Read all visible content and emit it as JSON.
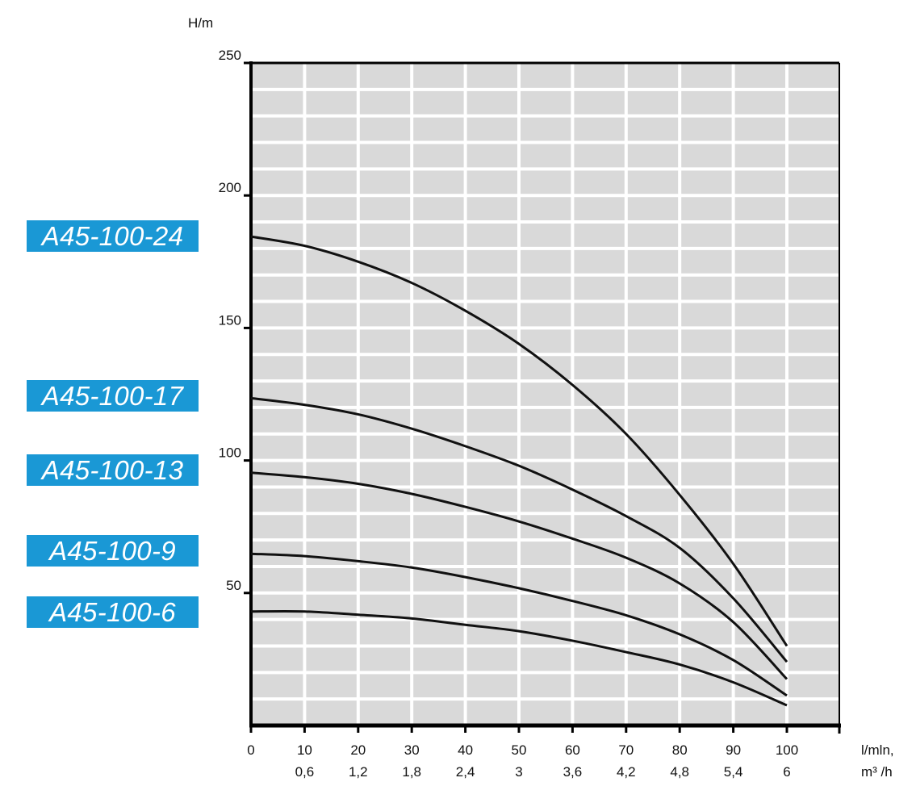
{
  "chart_data": {
    "type": "line",
    "ylabel": "H/m",
    "xlabel": "l/mln,",
    "xlabel2": "m³ /h",
    "xlim": [
      0,
      110
    ],
    "ylim": [
      0,
      250
    ],
    "grid": true,
    "x_ticks": [
      "0",
      "10",
      "20",
      "30",
      "40",
      "50",
      "60",
      "70",
      "80",
      "90",
      "100"
    ],
    "x_ticks_secondary": [
      "",
      "0,6",
      "1,2",
      "1,8",
      "2,4",
      "3",
      "3,6",
      "4,2",
      "4,8",
      "5,4",
      "6"
    ],
    "y_ticks": [
      "50",
      "100",
      "150",
      "200",
      "250"
    ],
    "x": [
      0,
      10,
      20,
      30,
      40,
      50,
      60,
      70,
      80,
      90,
      100
    ],
    "series": [
      {
        "name": "A45-100-24",
        "values": [
          184.5,
          181,
          175,
          167,
          156.5,
          144,
          128.5,
          110,
          87,
          61,
          30
        ]
      },
      {
        "name": "A45-100-17",
        "values": [
          123.5,
          121,
          117.4,
          112,
          105.4,
          98,
          89,
          79,
          67,
          48,
          24
        ]
      },
      {
        "name": "A45-100-13",
        "values": [
          95.4,
          93.7,
          91.2,
          87.4,
          82.5,
          77,
          70.5,
          63.3,
          53.6,
          39,
          17.5
        ]
      },
      {
        "name": "A45-100-9",
        "values": [
          64.8,
          63.9,
          62,
          59.6,
          56,
          51.8,
          47,
          41.6,
          34.4,
          24.7,
          11.3
        ]
      },
      {
        "name": "A45-100-6",
        "values": [
          43,
          43,
          41.8,
          40.4,
          38,
          35.6,
          32,
          27.7,
          23,
          16.3,
          7.6
        ]
      }
    ],
    "colors": {
      "plot_bg": "#d9d9d9",
      "grid": "#ffffff",
      "label_bg": "#1a98d5",
      "curve": "#111111"
    }
  }
}
